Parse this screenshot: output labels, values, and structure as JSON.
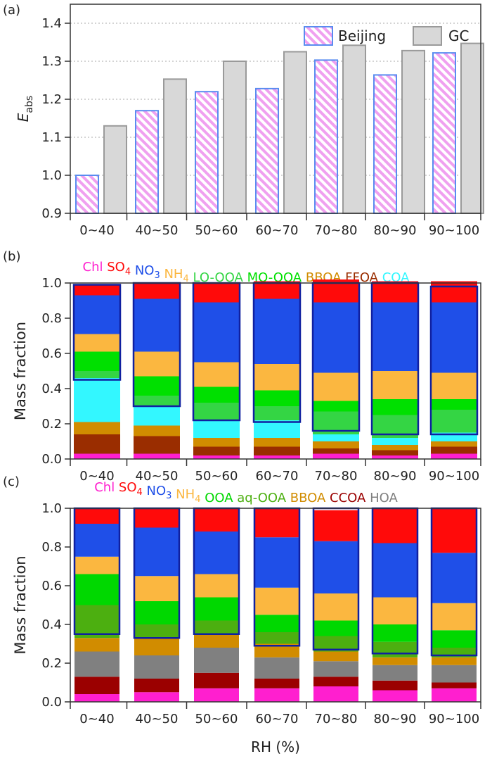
{
  "figure": {
    "rh_axis_label": "RH (%)",
    "colors": {
      "Chl": "#ff1fcf",
      "SO4": "#ff0a0a",
      "NO3": "#1f4fe8",
      "NH4": "#fbb740",
      "LO-OOA": "#34d544",
      "MO-OOA": "#00e000",
      "BBOA": "#d18c00",
      "FFOA": "#9a2d00",
      "COA": "#33f7ff",
      "OOA": "#00d800",
      "aq-OOA": "#4caf10",
      "CCOA": "#9b0000",
      "HOA": "#808080",
      "beijing_stroke": "#5a8cf0",
      "beijing_hatch": "#f0a0f0",
      "gc_fill": "#d8d8d8",
      "gc_stroke": "#9a9a9a",
      "box_outline": "#1020a0"
    }
  },
  "chart_data": [
    {
      "panel": "(a)",
      "type": "bar",
      "ylabel_main": "E",
      "ylabel_sub": "abs",
      "xlabel": "",
      "ylim": [
        0.9,
        1.45
      ],
      "yticks": [
        "0.9",
        "1.0",
        "1.1",
        "1.2",
        "1.3",
        "1.4"
      ],
      "grid": "horizontal-dotted",
      "legend_position": "top-right",
      "categories": [
        "0~40",
        "40~50",
        "50~60",
        "60~70",
        "70~80",
        "80~90",
        "90~100"
      ],
      "series": [
        {
          "name": "Beijing",
          "style": "hatched",
          "values": [
            1.0,
            1.17,
            1.22,
            1.228,
            1.303,
            1.264,
            1.322
          ]
        },
        {
          "name": "GC",
          "style": "solid",
          "values": [
            1.13,
            1.253,
            1.3,
            1.325,
            1.342,
            1.328,
            1.347
          ]
        }
      ]
    },
    {
      "panel": "(b)",
      "type": "bar",
      "stacked": true,
      "ylabel": "Mass fraction",
      "xlabel": "",
      "ylim": [
        0,
        1.0
      ],
      "yticks": [
        "0.0",
        "0.2",
        "0.4",
        "0.6",
        "0.8",
        "1.0"
      ],
      "categories": [
        "0~40",
        "40~50",
        "50~60",
        "60~70",
        "70~80",
        "80~90",
        "90~100"
      ],
      "legend": [
        {
          "key": "Chl",
          "label": "Chl",
          "sub": ""
        },
        {
          "key": "SO4",
          "label": "SO",
          "sub": "4"
        },
        {
          "key": "NO3",
          "label": "NO",
          "sub": "3"
        },
        {
          "key": "NH4",
          "label": "NH",
          "sub": "4"
        },
        {
          "key": "LO-OOA",
          "label": "LO-OOA",
          "sub": ""
        },
        {
          "key": "MO-OOA",
          "label": "MO-OOA",
          "sub": ""
        },
        {
          "key": "BBOA",
          "label": "BBOA",
          "sub": ""
        },
        {
          "key": "FFOA",
          "label": "FFOA",
          "sub": ""
        },
        {
          "key": "COA",
          "label": "COA",
          "sub": ""
        }
      ],
      "stack_order": [
        "Chl",
        "FFOA",
        "BBOA",
        "COA",
        "LO-OOA",
        "MO-OOA",
        "NH4",
        "NO3",
        "SO4"
      ],
      "series": [
        {
          "name": "Chl",
          "values": [
            0.03,
            0.03,
            0.02,
            0.02,
            0.03,
            0.02,
            0.03
          ]
        },
        {
          "name": "FFOA",
          "values": [
            0.11,
            0.1,
            0.05,
            0.05,
            0.03,
            0.03,
            0.04
          ]
        },
        {
          "name": "BBOA",
          "values": [
            0.07,
            0.06,
            0.05,
            0.05,
            0.04,
            0.03,
            0.03
          ]
        },
        {
          "name": "COA",
          "values": [
            0.25,
            0.11,
            0.1,
            0.1,
            0.04,
            0.04,
            0.05
          ]
        },
        {
          "name": "LO-OOA",
          "values": [
            0.04,
            0.06,
            0.1,
            0.08,
            0.13,
            0.13,
            0.13
          ]
        },
        {
          "name": "MO-OOA",
          "values": [
            0.11,
            0.11,
            0.09,
            0.09,
            0.06,
            0.09,
            0.06
          ]
        },
        {
          "name": "NH4",
          "values": [
            0.1,
            0.14,
            0.14,
            0.15,
            0.16,
            0.16,
            0.15
          ]
        },
        {
          "name": "NO3",
          "values": [
            0.22,
            0.3,
            0.34,
            0.37,
            0.4,
            0.39,
            0.4
          ]
        },
        {
          "name": "SO4",
          "values": [
            0.06,
            0.09,
            0.11,
            0.1,
            0.13,
            0.12,
            0.12
          ]
        }
      ],
      "boxed_bottom": [
        0.45,
        0.3,
        0.22,
        0.21,
        0.16,
        0.14,
        0.14
      ],
      "boxed_top": [
        0.99,
        1.0,
        1.0,
        1.0,
        1.0,
        1.0,
        0.98
      ]
    },
    {
      "panel": "(c)",
      "type": "bar",
      "stacked": true,
      "ylabel": "Mass fraction",
      "xlabel": "RH (%)",
      "ylim": [
        0,
        1.0
      ],
      "yticks": [
        "0.0",
        "0.2",
        "0.4",
        "0.6",
        "0.8",
        "1.0"
      ],
      "categories": [
        "0~40",
        "40~50",
        "50~60",
        "60~70",
        "70~80",
        "80~90",
        "90~100"
      ],
      "legend": [
        {
          "key": "Chl",
          "label": "Chl",
          "sub": ""
        },
        {
          "key": "SO4",
          "label": "SO",
          "sub": "4"
        },
        {
          "key": "NO3",
          "label": "NO",
          "sub": "3"
        },
        {
          "key": "NH4",
          "label": "NH",
          "sub": "4"
        },
        {
          "key": "OOA",
          "label": "OOA",
          "sub": ""
        },
        {
          "key": "aq-OOA",
          "label": "aq-OOA",
          "sub": ""
        },
        {
          "key": "BBOA",
          "label": "BBOA",
          "sub": ""
        },
        {
          "key": "CCOA",
          "label": "CCOA",
          "sub": ""
        },
        {
          "key": "HOA",
          "label": "HOA",
          "sub": ""
        }
      ],
      "stack_order": [
        "Chl",
        "CCOA",
        "HOA",
        "BBOA",
        "aq-OOA",
        "OOA",
        "NH4",
        "NO3",
        "SO4"
      ],
      "series": [
        {
          "name": "Chl",
          "values": [
            0.04,
            0.05,
            0.07,
            0.07,
            0.08,
            0.06,
            0.07
          ]
        },
        {
          "name": "CCOA",
          "values": [
            0.09,
            0.07,
            0.08,
            0.05,
            0.05,
            0.05,
            0.03
          ]
        },
        {
          "name": "HOA",
          "values": [
            0.13,
            0.12,
            0.13,
            0.11,
            0.08,
            0.08,
            0.09
          ]
        },
        {
          "name": "BBOA",
          "values": [
            0.07,
            0.09,
            0.07,
            0.07,
            0.05,
            0.04,
            0.04
          ]
        },
        {
          "name": "aq-OOA",
          "values": [
            0.17,
            0.07,
            0.07,
            0.06,
            0.08,
            0.08,
            0.05
          ]
        },
        {
          "name": "OOA",
          "values": [
            0.16,
            0.12,
            0.12,
            0.09,
            0.08,
            0.09,
            0.09
          ]
        },
        {
          "name": "NH4",
          "values": [
            0.09,
            0.13,
            0.12,
            0.14,
            0.14,
            0.14,
            0.14
          ]
        },
        {
          "name": "NO3",
          "values": [
            0.17,
            0.25,
            0.22,
            0.26,
            0.27,
            0.28,
            0.26
          ]
        },
        {
          "name": "SO4",
          "values": [
            0.08,
            0.1,
            0.12,
            0.15,
            0.16,
            0.18,
            0.23
          ]
        }
      ],
      "boxed_bottom": [
        0.35,
        0.33,
        0.35,
        0.29,
        0.27,
        0.25,
        0.24
      ],
      "boxed_top": [
        1.0,
        1.0,
        1.0,
        1.0,
        1.0,
        1.0,
        1.0
      ]
    }
  ]
}
